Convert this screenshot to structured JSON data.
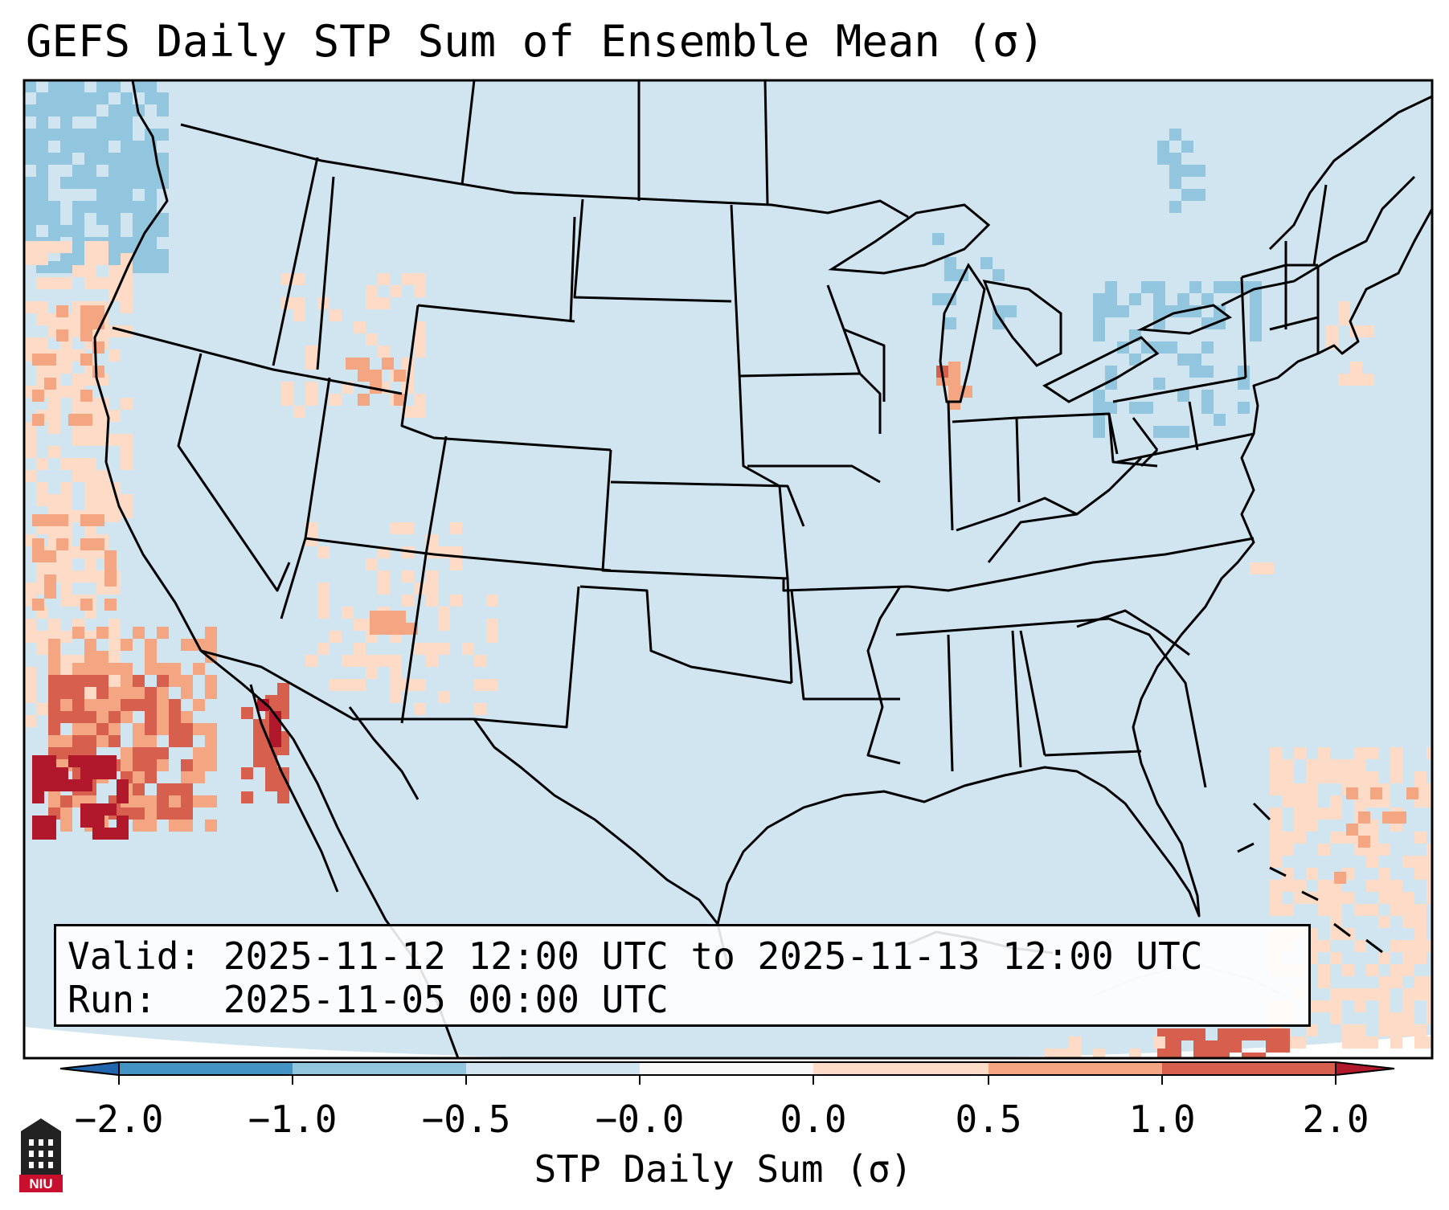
{
  "title": "GEFS Daily STP Sum of Ensemble Mean (σ)",
  "info": {
    "valid": "Valid: 2025-11-12 12:00 UTC to 2025-11-13 12:00 UTC",
    "run": "Run:   2025-11-05 00:00 UTC"
  },
  "colorbar": {
    "label": "STP Daily Sum (σ)",
    "ticks": [
      "−2.0",
      "−1.0",
      "−0.5",
      "−0.0",
      "0.0",
      "0.5",
      "1.0",
      "2.0"
    ],
    "bins": [
      {
        "range": "< -2.0",
        "color": "#2166ac"
      },
      {
        "range": "-2.0 to -1.0",
        "color": "#4393c3"
      },
      {
        "range": "-1.0 to -0.5",
        "color": "#92c5de"
      },
      {
        "range": "-0.5 to -0.0",
        "color": "#d1e5f0"
      },
      {
        "range": "-0.0 to 0.0",
        "color": "#f7f7f7"
      },
      {
        "range": "0.0 to 0.5",
        "color": "#fddbc7"
      },
      {
        "range": "0.5 to 1.0",
        "color": "#f4a582"
      },
      {
        "range": "1.0 to 2.0",
        "color": "#d6604d"
      },
      {
        "range": "> 2.0",
        "color": "#b2182b"
      }
    ]
  },
  "map": {
    "domain": "Contiguous United States",
    "background_color": "#d1e5f0",
    "anomaly_regions": [
      {
        "region": "Pacific Northwest coast / offshore",
        "category": "-1.0 to -0.5"
      },
      {
        "region": "Offshore Oregon-California",
        "category": "0.0 to 1.0"
      },
      {
        "region": "Offshore Baja California",
        "category": "1.0 to > 2.0"
      },
      {
        "region": "Gulf of California",
        "category": "1.0 to > 2.0"
      },
      {
        "region": "Utah-Colorado",
        "category": "0.0 to 1.0"
      },
      {
        "region": "Arizona-New Mexico",
        "category": "0.0 to 1.0"
      },
      {
        "region": "Lake Michigan (Illinois shore)",
        "category": "0.5 to 1.0"
      },
      {
        "region": "Great Lakes / New York / Pennsylvania",
        "category": "-1.0 to -0.5"
      },
      {
        "region": "New England coast",
        "category": "0.0 to 0.5"
      },
      {
        "region": "Western Atlantic / Bahamas",
        "category": "0.0 to 1.0"
      },
      {
        "region": "Caribbean south of Cuba",
        "category": "0.5 to 1.0"
      }
    ]
  },
  "logo": {
    "text": "NIU"
  }
}
